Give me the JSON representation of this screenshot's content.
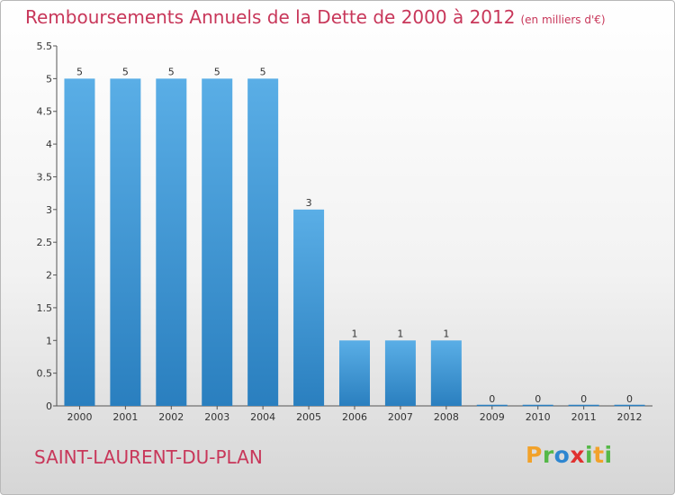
{
  "page": {
    "place": "SAINT-LAURENT-DU-PLAN",
    "brand": "Proxiti"
  },
  "colors": {
    "title": "#c8375a",
    "bar_top": "#5aaee6",
    "bar_bottom": "#2a7fbf",
    "axis": "#555555",
    "logo_letters": [
      "#f2a22a",
      "#55b848",
      "#2e86d0",
      "#e0312f",
      "#55b848",
      "#f2a22a",
      "#55b848"
    ]
  },
  "chart_data": {
    "type": "bar",
    "title": "Remboursements Annuels de la Dette de 2000 à 2012",
    "subtitle": "(en milliers d'€)",
    "xlabel": "",
    "ylabel": "",
    "ylim": [
      0,
      5.5
    ],
    "yticks": [
      0,
      0.5,
      1,
      1.5,
      2,
      2.5,
      3,
      3.5,
      4,
      4.5,
      5,
      5.5
    ],
    "ytick_labels": [
      "0",
      "0.5",
      "1",
      "1.5",
      "2",
      "2.5",
      "3",
      "3.5",
      "4",
      "4.5",
      "5",
      "5.5"
    ],
    "grid": false,
    "categories": [
      "2000",
      "2001",
      "2002",
      "2003",
      "2004",
      "2005",
      "2006",
      "2007",
      "2008",
      "2009",
      "2010",
      "2011",
      "2012"
    ],
    "values": [
      5,
      5,
      5,
      5,
      5,
      3,
      1,
      1,
      1,
      0,
      0,
      0,
      0
    ],
    "data_labels": [
      "5",
      "5",
      "5",
      "5",
      "5",
      "3",
      "1",
      "1",
      "1",
      "0",
      "0",
      "0",
      "0"
    ]
  }
}
